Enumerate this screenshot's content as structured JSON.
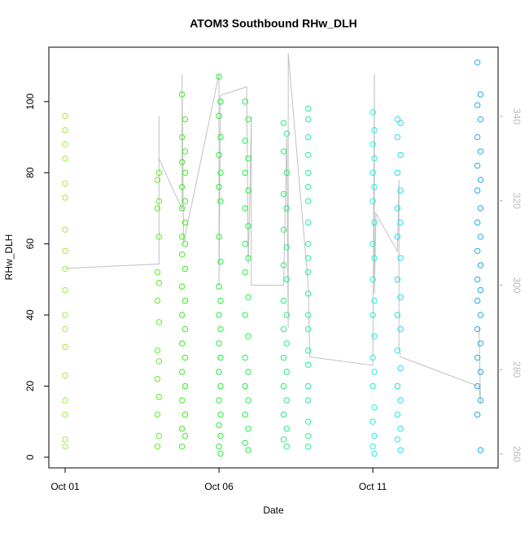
{
  "chart_data": {
    "type": "scatter",
    "title": "ATOM3 Southbound RHw_DLH",
    "x_label": "Date",
    "y_label": "RHw_DLH",
    "xlim": [
      -0.53,
      14.07
    ],
    "ylim": [
      -3,
      115.3
    ],
    "y2lim": [
      256.7,
      356.4
    ],
    "xticks": [
      {
        "value": 0,
        "label": "Oct 01"
      },
      {
        "value": 5,
        "label": "Oct 06"
      },
      {
        "value": 10,
        "label": "Oct 11"
      }
    ],
    "yticks": [
      0,
      20,
      40,
      60,
      80,
      100
    ],
    "y2ticks": [
      260,
      280,
      300,
      320,
      340
    ],
    "series": [
      {
        "color": "#9af03a",
        "x": [
          0,
          0,
          0,
          0,
          0,
          0,
          0,
          0,
          0,
          0,
          0,
          0,
          0,
          0,
          0,
          0,
          0,
          0
        ],
        "values": [
          96,
          92,
          88,
          84,
          77,
          73,
          64,
          58,
          53,
          47,
          40,
          36,
          31,
          23,
          16,
          12,
          5,
          3
        ]
      },
      {
        "color": "#5eee22",
        "x": [
          3.05,
          3.0,
          3.05,
          3.0,
          3.05,
          3.0,
          3.05,
          3.0,
          3.05,
          3.0,
          3.05,
          3.0,
          3.05,
          3.0,
          3.05,
          3.0
        ],
        "values": [
          80,
          78,
          72,
          70,
          62,
          52,
          49,
          44,
          38,
          30,
          27,
          22,
          17,
          12,
          6,
          3
        ]
      },
      {
        "color": "#3aee1c",
        "x": [
          3.8,
          3.9,
          3.8,
          3.9,
          3.8,
          3.9,
          3.8,
          3.9,
          3.8,
          3.9,
          3.8,
          3.9,
          3.8,
          3.9,
          3.8,
          3.9,
          3.8,
          3.9,
          3.8,
          3.9,
          3.8,
          3.9,
          3.8,
          3.9,
          3.8,
          3.9,
          3.8
        ],
        "values": [
          102,
          95,
          90,
          86,
          83,
          80,
          76,
          72,
          70,
          66,
          62,
          60,
          57,
          53,
          48,
          44,
          40,
          36,
          32,
          28,
          24,
          20,
          16,
          12,
          8,
          6,
          3
        ]
      },
      {
        "color": "#22ee3a",
        "x": [
          5.0,
          5.05,
          5.0,
          5.05,
          5.0,
          5.05,
          5.0,
          5.05,
          5.0,
          5.05,
          5.0,
          5.05,
          5.0,
          5.05,
          5.0,
          5.05,
          5.0,
          5.05,
          5.0,
          5.05,
          5.0,
          5.05,
          5.0,
          5.05
        ],
        "values": [
          107,
          100,
          96,
          90,
          85,
          80,
          76,
          72,
          62,
          55,
          48,
          44,
          40,
          36,
          32,
          28,
          24,
          20,
          16,
          12,
          9,
          6,
          3,
          1
        ]
      },
      {
        "color": "#22ee4e",
        "x": [
          5.85,
          5.95,
          5.85,
          5.95,
          5.85,
          5.95,
          5.85,
          5.95,
          5.85,
          5.95,
          5.85,
          5.95,
          5.85,
          5.95,
          5.85,
          5.95,
          5.85,
          5.95,
          5.85,
          5.95,
          5.85,
          5.95
        ],
        "values": [
          100,
          95,
          89,
          84,
          80,
          75,
          70,
          65,
          60,
          56,
          52,
          45,
          40,
          34,
          28,
          24,
          20,
          16,
          12,
          8,
          4,
          2
        ]
      },
      {
        "color": "#22ee78",
        "x": [
          7.1,
          7.2,
          7.1,
          7.2,
          7.1,
          7.2,
          7.1,
          7.2,
          7.1,
          7.2,
          7.1,
          7.2,
          7.1,
          7.2,
          7.1,
          7.2,
          7.1,
          7.2,
          7.1,
          7.2,
          7.1,
          7.2
        ],
        "values": [
          94,
          91,
          86,
          80,
          74,
          70,
          64,
          59,
          54,
          50,
          44,
          40,
          36,
          32,
          28,
          24,
          20,
          16,
          12,
          8,
          5,
          3
        ]
      },
      {
        "color": "#22ee96",
        "x": [
          7.9,
          7.9,
          7.9,
          7.9,
          7.9,
          7.9,
          7.9,
          7.9,
          7.9,
          7.9,
          7.9,
          7.9,
          7.9,
          7.9,
          7.9,
          7.9,
          7.9,
          7.9,
          7.9,
          7.9,
          7.9
        ],
        "values": [
          98,
          95,
          90,
          85,
          80,
          76,
          72,
          66,
          60,
          56,
          52,
          46,
          40,
          36,
          30,
          26,
          20,
          16,
          10,
          6,
          3
        ]
      },
      {
        "color": "#22eedc",
        "x": [
          10.0,
          10.05,
          10.0,
          10.05,
          10.0,
          10.05,
          10.0,
          10.05,
          10.0,
          10.05,
          10.0,
          10.05,
          10.0,
          10.05,
          10.0,
          10.05,
          10.0,
          10.05,
          10.0,
          10.05,
          10.0,
          10.05
        ],
        "values": [
          97,
          92,
          88,
          84,
          80,
          76,
          72,
          66,
          60,
          56,
          50,
          44,
          40,
          34,
          28,
          24,
          20,
          14,
          10,
          6,
          3,
          1
        ]
      },
      {
        "color": "#22dcee",
        "x": [
          10.8,
          10.9,
          10.8,
          10.9,
          10.8,
          10.9,
          10.8,
          10.9,
          10.8,
          10.9,
          10.8,
          10.9,
          10.8,
          10.9,
          10.8,
          10.9,
          10.8,
          10.9,
          10.8,
          10.9,
          10.8,
          10.9
        ],
        "values": [
          95,
          94,
          90,
          85,
          80,
          75,
          70,
          66,
          62,
          56,
          50,
          45,
          40,
          36,
          30,
          25,
          20,
          16,
          12,
          8,
          5,
          2
        ]
      },
      {
        "color": "#22aaee",
        "x": [
          13.4,
          13.5,
          13.4,
          13.5,
          13.4,
          13.5,
          13.4,
          13.5,
          13.4,
          13.5,
          13.4,
          13.5,
          13.4,
          13.5,
          13.4,
          13.5,
          13.4,
          13.5,
          13.4,
          13.5,
          13.4,
          13.5,
          13.4,
          13.5,
          13.4,
          13.5
        ],
        "values": [
          111,
          102,
          99,
          95,
          90,
          86,
          82,
          78,
          75,
          70,
          66,
          62,
          58,
          54,
          50,
          47,
          44,
          40,
          36,
          32,
          28,
          24,
          20,
          16,
          12,
          2
        ]
      },
      {
        "type": "line",
        "axis": "y2",
        "color": "#c0c0c0",
        "x": [
          0,
          3.05,
          3.05,
          3.05,
          3.8,
          3.8,
          3.85,
          5.0,
          5.0,
          5.05,
          5.9,
          5.95,
          6.0,
          6.05,
          6.05,
          7.1,
          7.2,
          7.25,
          7.25,
          7.9,
          7.95,
          10.0,
          10.05,
          10.05,
          10.1,
          10.8,
          10.85,
          10.85,
          10.9,
          13.45,
          13.5,
          13.45
        ],
        "values": [
          304,
          305,
          340,
          330,
          318,
          350,
          310,
          350,
          300,
          345,
          347,
          305,
          320,
          340,
          300,
          300,
          335,
          290,
          355,
          300,
          283,
          281,
          350,
          298,
          317,
          308,
          325,
          285,
          283,
          276,
          272,
          290
        ]
      }
    ]
  }
}
